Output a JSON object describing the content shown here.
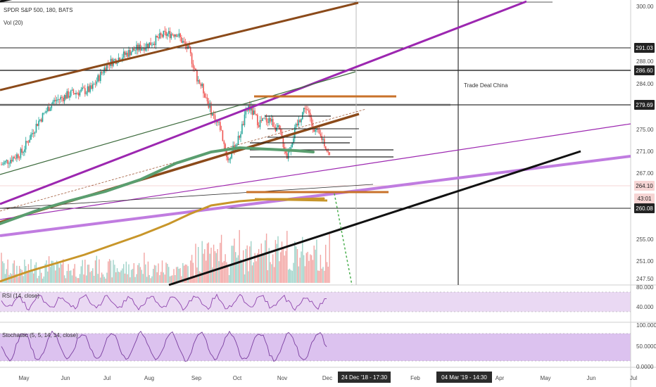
{
  "chart_data": {
    "type": "candlestick",
    "title": "SPDR S&P 500, 180, BATS",
    "volume_label": "Vol (20)",
    "rsi_label": "RSI (14, close)",
    "stoch_label": "Stochastic (5, 5, 14, 14, close)",
    "annotation": "Trade Deal China",
    "x_ticks": [
      "May",
      "Jun",
      "Jul",
      "Aug",
      "Sep",
      "Oct",
      "Nov",
      "Dec",
      "Feb",
      "Apr",
      "May",
      "Jun",
      "Jul"
    ],
    "x_badges": [
      "24 Dec '18 - 17:30",
      "04 Mar '19 - 14:30"
    ],
    "price_ticks": [
      "300.00",
      "288.00",
      "284.00",
      "275.00",
      "271.00",
      "267.00",
      "255.00",
      "251.00",
      "247.50"
    ],
    "price_badges": [
      {
        "label": "291.03",
        "style": "dark"
      },
      {
        "label": "286.60",
        "style": "dark"
      },
      {
        "label": "279.69",
        "style": "dark"
      },
      {
        "label": "264.10",
        "style": "light"
      },
      {
        "label": "43:01",
        "style": "light"
      },
      {
        "label": "260.08",
        "style": "dark"
      }
    ],
    "rsi_ticks": [
      "80.000",
      "40.000"
    ],
    "stoch_ticks": [
      "100.0000",
      "50.0000",
      "0.0000"
    ],
    "price_levels": {
      "high": 293.94,
      "drop_low": 259.5,
      "last": 264.1
    },
    "colors": {
      "up": "#26a69a",
      "down": "#ef5350",
      "purple": "#9c27b0",
      "brown": "#8b4a1a",
      "orange": "#c8722a",
      "ma_green": "#5a9e6f",
      "ma_gold": "#c8962a",
      "rsi": "#8e44ad"
    }
  }
}
